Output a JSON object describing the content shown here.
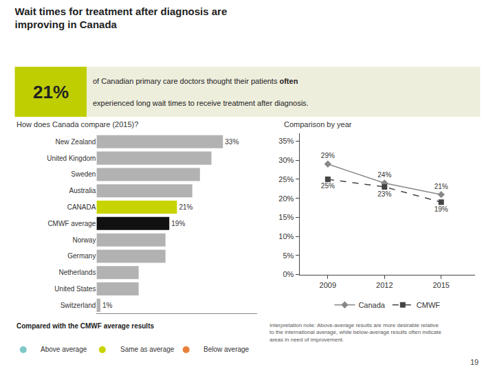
{
  "title": "Wait times for treatment after diagnosis are\nimproving in Canada",
  "annotations": [
    {
      "text": "21%",
      "color": "#bece00"
    },
    {
      "text": "of Canadian primary care doctors thought their patients",
      "color": "#eeeedd"
    },
    {
      "text": "often"
    },
    {
      "text": "experienced long wait times to receive treatment after diagnosis."
    },
    {
      "text": "Compared with the CMWF average results"
    },
    {
      "text": "Above average",
      "color": "#7ec8c8",
      "marker": "circle"
    },
    {
      "text": "Same as average",
      "color": "#c8d400",
      "marker": "circle"
    },
    {
      "text": "Below average",
      "color": "#e8813a",
      "marker": "circle"
    },
    {
      "text": "Interpretation note: Above-average results are more desirable relative\nto the international average, while below-average results often indicate\nareas in need of improvement."
    },
    {
      "text": "19"
    }
  ],
  "chart_data": [
    {
      "type": "bar",
      "title": "How does Canada compare (2015)?",
      "orientation": "horizontal",
      "categories": [
        "New Zealand",
        "United Kingdom",
        "Sweden",
        "Australia",
        "CANADA",
        "CMWF average",
        "Norway",
        "Germany",
        "Netherlands",
        "United States",
        "Switzerland"
      ],
      "values": [
        33,
        30,
        27,
        25,
        21,
        19,
        18,
        18,
        11,
        11,
        1
      ],
      "colors": [
        "#b2b2b2",
        "#b2b2b2",
        "#b2b2b2",
        "#b2b2b2",
        "#c8d400",
        "#111111",
        "#b2b2b2",
        "#b2b2b2",
        "#b2b2b2",
        "#b2b2b2",
        "#b2b2b2"
      ],
      "data_labels": true,
      "value_labels": [
        "33%",
        null,
        null,
        null,
        "21%",
        "19%",
        null,
        null,
        null,
        null,
        "1%"
      ],
      "xlim": [
        0,
        42
      ],
      "xticks": [],
      "tick_labels": "y",
      "grid": false
    },
    {
      "type": "line",
      "title": "Comparison by year",
      "x": [
        2009,
        2012,
        2015
      ],
      "series": [
        {
          "name": "Canada",
          "color": "#888888",
          "marker": "diamond",
          "line_style": "solid",
          "values": [
            29,
            24,
            21
          ],
          "value_labels": [
            "29%",
            "24%",
            "21%"
          ]
        },
        {
          "name": "CMWF",
          "color": "#444444",
          "marker": "square",
          "line_style": "dashed",
          "values": [
            25,
            23,
            19
          ],
          "value_labels": [
            "25%",
            "23%",
            "19%"
          ]
        }
      ],
      "data_labels": true,
      "xlim": [
        2007.5,
        2016.8
      ],
      "xticks": [
        2009,
        2012,
        2015
      ],
      "ylim": [
        0,
        37
      ],
      "yticks": [
        {
          "value": 0,
          "label": "0%"
        },
        {
          "value": 5,
          "label": "5%"
        },
        {
          "value": 10,
          "label": "10%"
        },
        {
          "value": 15,
          "label": "15%"
        },
        {
          "value": 20,
          "label": "20%"
        },
        {
          "value": 25,
          "label": "25%"
        },
        {
          "value": 30,
          "label": "30%"
        },
        {
          "value": 35,
          "label": "35%"
        }
      ],
      "grid": false,
      "legend": "bottom"
    }
  ]
}
